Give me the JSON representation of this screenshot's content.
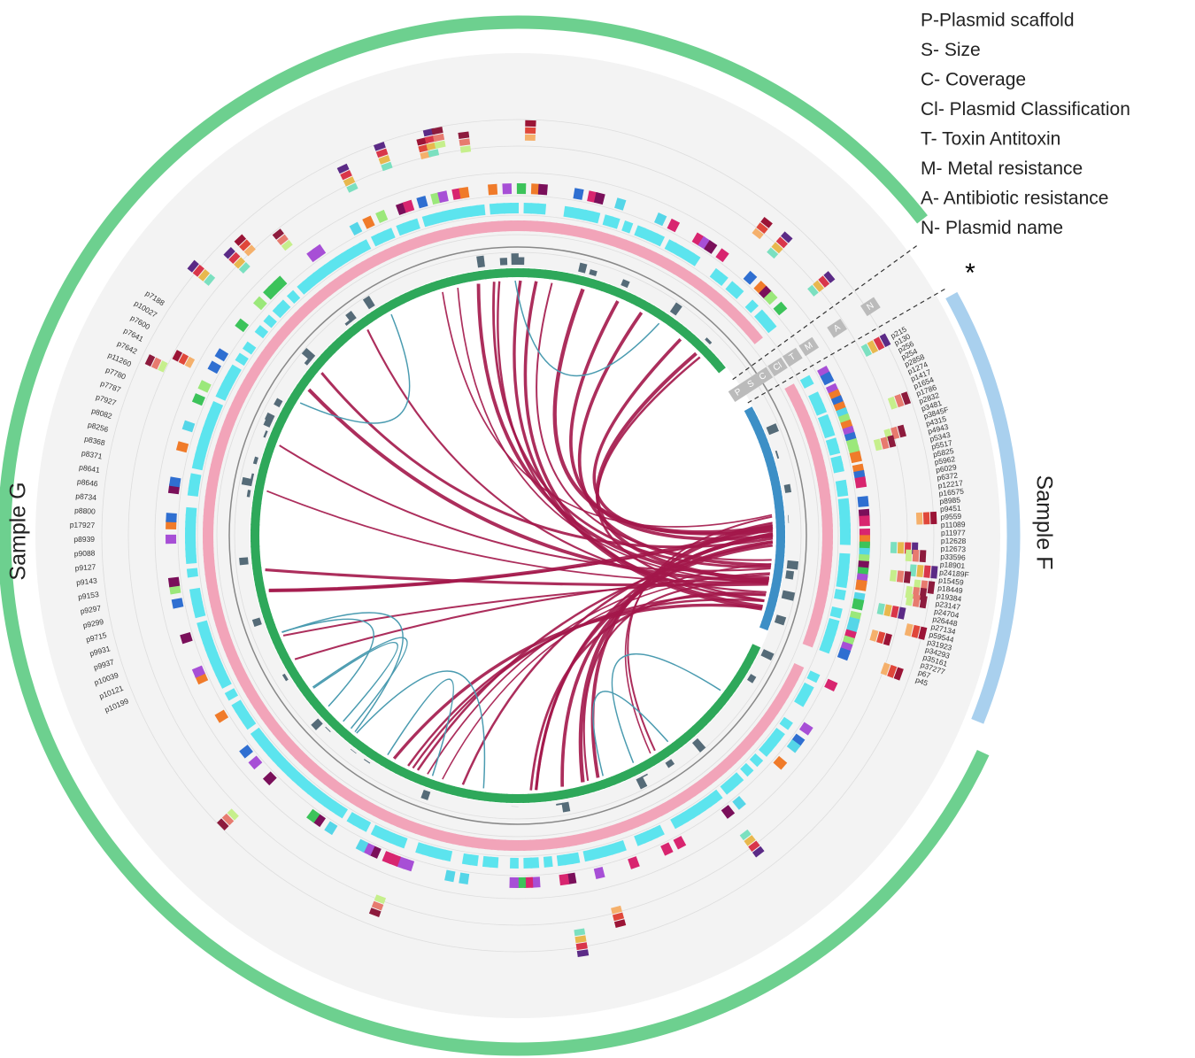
{
  "legend": [
    "P-Plasmid scaffold",
    "S- Size",
    "C- Coverage",
    "Cl- Plasmid Classification",
    "T- Toxin Antitoxin",
    "M- Metal resistance",
    "A- Antibiotic resistance",
    "N- Plasmid name"
  ],
  "samples": {
    "g": "Sample G",
    "f": "Sample F"
  },
  "tracks": [
    "P",
    "S",
    "C",
    "Cl",
    "T",
    "M",
    "A",
    "N"
  ],
  "marker": "*",
  "sample_f_plasmids": [
    "p215",
    "p130",
    "p256",
    "p254",
    "p2858",
    "p1274",
    "p1417",
    "p1654",
    "p1786",
    "p2832",
    "p3481",
    "p3845F",
    "p4315",
    "p4943",
    "p5343",
    "p5517",
    "p5825",
    "p5962",
    "p6029",
    "p6372",
    "p12217",
    "p16575",
    "p8985",
    "p9451",
    "p9559",
    "p11089",
    "p11977",
    "p12628",
    "p12673",
    "p33596",
    "p18901",
    "p24189F",
    "p15459",
    "p18449",
    "p19384",
    "p23147",
    "p24704",
    "p26448",
    "p27134",
    "p59544",
    "p31923",
    "p34293",
    "p35161",
    "p37277",
    "p67",
    "p45"
  ],
  "sample_g_plasmids": [
    "p10199",
    "p10121",
    "p10039",
    "p9937",
    "p9931",
    "p9715",
    "p9299",
    "p9297",
    "p9153",
    "p9143",
    "p9127",
    "p9088",
    "p8939",
    "p17927",
    "p8800",
    "p8734",
    "p8646",
    "p8641",
    "p8371",
    "p8368",
    "p8256",
    "p8082",
    "p7927",
    "p7787",
    "p7780",
    "p11260",
    "p7642",
    "p7641",
    "p7600",
    "p10027",
    "p7188"
  ]
}
